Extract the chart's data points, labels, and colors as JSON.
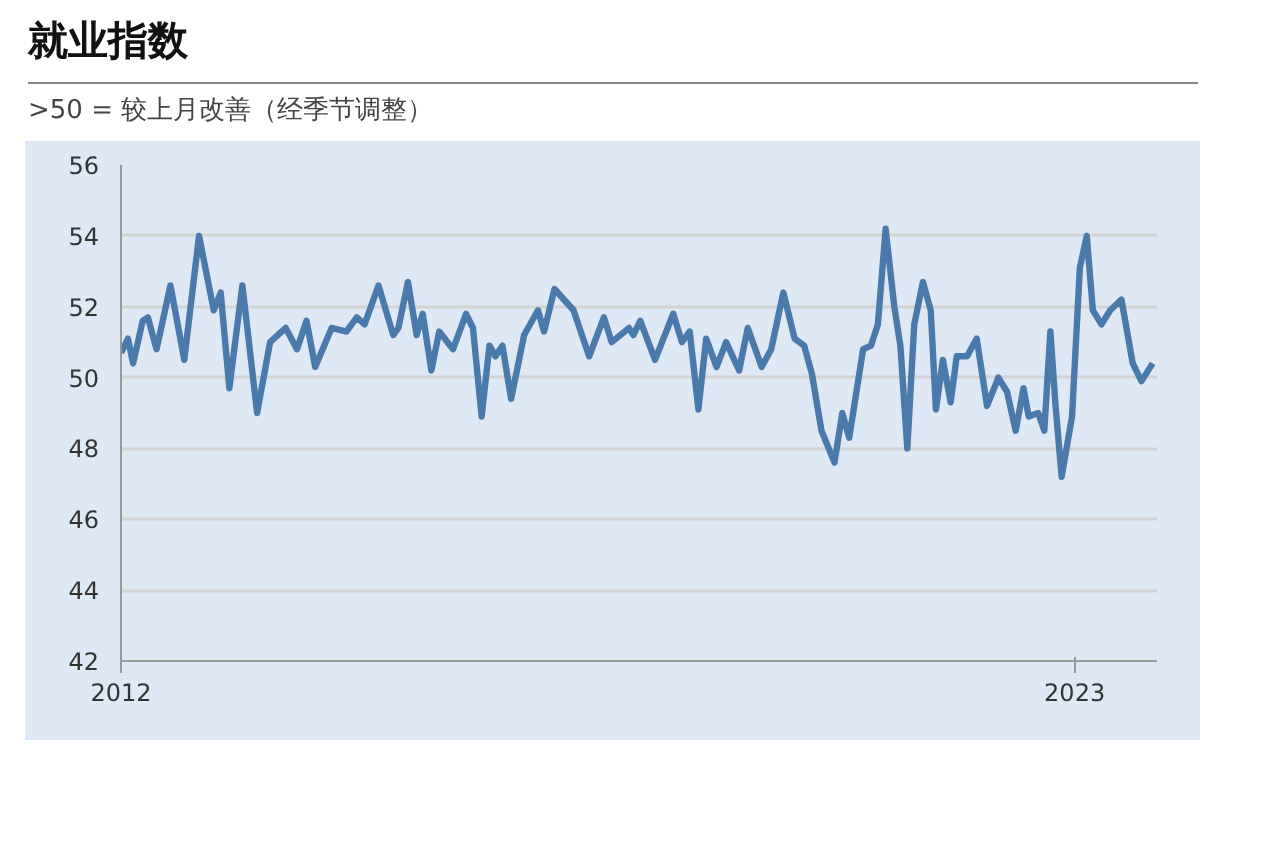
{
  "chart_data": {
    "type": "line",
    "title": "就业指数",
    "subtitle": ">50 = 较上月改善（经季节调整）",
    "x": [
      2012.0,
      2012.08,
      2012.14,
      2012.25,
      2012.31,
      2012.41,
      2012.57,
      2012.73,
      2012.9,
      2013.07,
      2013.15,
      2013.25,
      2013.4,
      2013.57,
      2013.72,
      2013.9,
      2014.03,
      2014.14,
      2014.24,
      2014.43,
      2014.6,
      2014.72,
      2014.81,
      2014.97,
      2015.14,
      2015.2,
      2015.31,
      2015.41,
      2015.48,
      2015.58,
      2015.67,
      2015.83,
      2015.98,
      2016.06,
      2016.16,
      2016.25,
      2016.32,
      2016.4,
      2016.5,
      2016.65,
      2016.81,
      2016.88,
      2017.0,
      2017.22,
      2017.4,
      2017.57,
      2017.66,
      2017.86,
      2017.91,
      2017.99,
      2018.16,
      2018.37,
      2018.47,
      2018.56,
      2018.66,
      2018.75,
      2018.87,
      2018.98,
      2019.13,
      2019.23,
      2019.39,
      2019.5,
      2019.64,
      2019.77,
      2019.88,
      2019.97,
      2020.08,
      2020.23,
      2020.32,
      2020.4,
      2020.56,
      2020.65,
      2020.73,
      2020.82,
      2020.92,
      2020.99,
      2021.07,
      2021.15,
      2021.25,
      2021.34,
      2021.4,
      2021.48,
      2021.57,
      2021.64,
      2021.76,
      2021.87,
      2021.99,
      2022.12,
      2022.22,
      2022.32,
      2022.41,
      2022.47,
      2022.58,
      2022.65,
      2022.72,
      2022.78,
      2022.85,
      2022.97,
      2023.06,
      2023.14,
      2023.21,
      2023.31,
      2023.41,
      2023.54,
      2023.67,
      2023.77,
      2023.9
    ],
    "series": [
      {
        "color": "#4a7aab",
        "values": [
          50.7,
          51.1,
          50.4,
          51.6,
          51.7,
          50.8,
          52.6,
          50.5,
          54.0,
          51.9,
          52.4,
          49.7,
          52.6,
          49.0,
          51.0,
          51.4,
          50.8,
          51.6,
          50.3,
          51.4,
          51.3,
          51.7,
          51.5,
          52.6,
          51.2,
          51.4,
          52.7,
          51.2,
          51.8,
          50.2,
          51.3,
          50.8,
          51.8,
          51.4,
          48.9,
          50.9,
          50.6,
          50.9,
          49.4,
          51.2,
          51.9,
          51.3,
          52.5,
          51.9,
          50.6,
          51.7,
          51.0,
          51.4,
          51.2,
          51.6,
          50.5,
          51.8,
          51.0,
          51.3,
          49.1,
          51.1,
          50.3,
          51.0,
          50.2,
          51.4,
          50.3,
          50.8,
          52.4,
          51.1,
          50.9,
          50.1,
          48.5,
          47.6,
          49.0,
          48.3,
          50.8,
          50.9,
          51.5,
          54.2,
          52.0,
          50.9,
          48.0,
          51.5,
          52.7,
          51.9,
          49.1,
          50.5,
          49.3,
          50.6,
          50.6,
          51.1,
          49.2,
          50.0,
          49.6,
          48.5,
          49.7,
          48.9,
          49.0,
          48.5,
          51.3,
          49.2,
          47.2,
          48.9,
          53.1,
          54.0,
          51.9,
          51.5,
          51.9,
          52.2,
          50.4,
          49.9,
          50.4
        ]
      }
    ],
    "xlim": [
      2012,
      2023.95
    ],
    "xticks": [
      2012,
      2023
    ],
    "ylim": [
      42,
      56
    ],
    "yticks": [
      42,
      44,
      46,
      48,
      50,
      52,
      54,
      56
    ],
    "grid": "y",
    "line_style": "solid",
    "marker": "none"
  }
}
